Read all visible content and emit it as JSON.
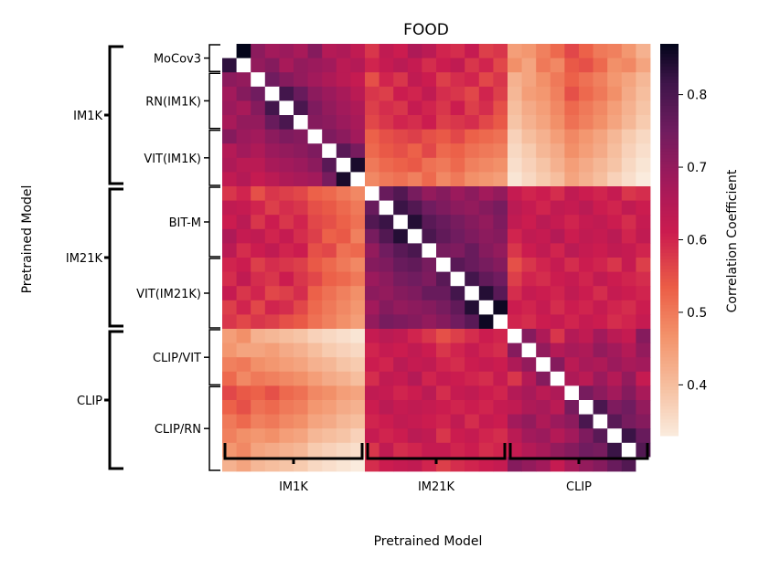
{
  "chart_data": {
    "type": "heatmap",
    "title": "FOOD",
    "xlabel": "Pretrained Model",
    "ylabel": "Pretrained Model",
    "colorbar": {
      "label": "Correlation Coefficient",
      "ticks": [
        0.4,
        0.5,
        0.6,
        0.7,
        0.8
      ],
      "tick_labels": [
        "0.4",
        "0.5",
        "0.6",
        "0.7",
        "0.8"
      ],
      "vmin": 0.33,
      "vmax": 0.87,
      "colormap": "rocket"
    },
    "groups": [
      {
        "name": "IM1K",
        "start": 0,
        "end": 10,
        "subgroups": [
          {
            "name": "MoCov3",
            "start": 0,
            "end": 2
          },
          {
            "name": "RN(IM1K)",
            "start": 2,
            "end": 6
          },
          {
            "name": "VIT(IM1K)",
            "start": 6,
            "end": 10
          }
        ]
      },
      {
        "name": "IM21K",
        "start": 10,
        "end": 20,
        "subgroups": [
          {
            "name": "BIT-M",
            "start": 10,
            "end": 15
          },
          {
            "name": "VIT(IM21K)",
            "start": 15,
            "end": 20
          }
        ]
      },
      {
        "name": "CLIP",
        "start": 20,
        "end": 30,
        "subgroups": [
          {
            "name": "CLIP/VIT",
            "start": 20,
            "end": 24
          },
          {
            "name": "CLIP/RN",
            "start": 24,
            "end": 30
          }
        ]
      }
    ],
    "x_groups": [
      "IM1K",
      "IM21K",
      "CLIP"
    ],
    "n": 30,
    "diagonal": "masked (white)",
    "values": [
      [
        null,
        0.87,
        0.71,
        0.68,
        0.69,
        0.67,
        0.72,
        0.65,
        0.66,
        0.63,
        0.58,
        0.63,
        0.61,
        0.66,
        0.64,
        0.6,
        0.59,
        0.62,
        0.57,
        0.58,
        0.45,
        0.46,
        0.49,
        0.52,
        0.56,
        0.53,
        0.5,
        0.49,
        0.46,
        0.42
      ],
      [
        0.83,
        null,
        0.7,
        0.72,
        0.67,
        0.7,
        0.69,
        0.68,
        0.64,
        0.65,
        0.6,
        0.62,
        0.64,
        0.62,
        0.59,
        0.61,
        0.63,
        0.58,
        0.6,
        0.56,
        0.47,
        0.44,
        0.5,
        0.48,
        0.54,
        0.55,
        0.52,
        0.47,
        0.48,
        0.44
      ],
      [
        0.71,
        0.7,
        null,
        0.75,
        0.72,
        0.7,
        0.68,
        0.66,
        0.64,
        0.62,
        0.55,
        0.6,
        0.58,
        0.63,
        0.61,
        0.57,
        0.59,
        0.6,
        0.56,
        0.58,
        0.42,
        0.44,
        0.47,
        0.5,
        0.53,
        0.51,
        0.49,
        0.46,
        0.44,
        0.41
      ],
      [
        0.68,
        0.72,
        0.75,
        null,
        0.81,
        0.76,
        0.71,
        0.69,
        0.67,
        0.64,
        0.58,
        0.57,
        0.61,
        0.6,
        0.63,
        0.59,
        0.58,
        0.56,
        0.6,
        0.57,
        0.41,
        0.45,
        0.46,
        0.49,
        0.55,
        0.52,
        0.5,
        0.47,
        0.43,
        0.4
      ],
      [
        0.69,
        0.67,
        0.72,
        0.81,
        null,
        0.8,
        0.73,
        0.7,
        0.68,
        0.66,
        0.57,
        0.59,
        0.58,
        0.62,
        0.6,
        0.58,
        0.61,
        0.57,
        0.59,
        0.55,
        0.4,
        0.43,
        0.45,
        0.48,
        0.52,
        0.5,
        0.48,
        0.45,
        0.42,
        0.39
      ],
      [
        0.67,
        0.7,
        0.7,
        0.76,
        0.8,
        null,
        0.72,
        0.71,
        0.69,
        0.67,
        0.56,
        0.58,
        0.6,
        0.59,
        0.61,
        0.57,
        0.58,
        0.59,
        0.56,
        0.54,
        0.39,
        0.42,
        0.44,
        0.47,
        0.51,
        0.49,
        0.47,
        0.44,
        0.41,
        0.38
      ],
      [
        0.72,
        0.69,
        0.68,
        0.71,
        0.73,
        0.72,
        null,
        0.73,
        0.71,
        0.68,
        0.53,
        0.55,
        0.56,
        0.57,
        0.55,
        0.54,
        0.56,
        0.53,
        0.52,
        0.51,
        0.37,
        0.4,
        0.42,
        0.45,
        0.48,
        0.46,
        0.44,
        0.41,
        0.38,
        0.36
      ],
      [
        0.65,
        0.68,
        0.66,
        0.69,
        0.7,
        0.71,
        0.73,
        null,
        0.78,
        0.74,
        0.52,
        0.54,
        0.55,
        0.53,
        0.56,
        0.52,
        0.53,
        0.51,
        0.5,
        0.49,
        0.36,
        0.38,
        0.41,
        0.43,
        0.47,
        0.45,
        0.43,
        0.4,
        0.37,
        0.35
      ],
      [
        0.66,
        0.64,
        0.64,
        0.67,
        0.68,
        0.69,
        0.71,
        0.78,
        null,
        0.85,
        0.5,
        0.52,
        0.53,
        0.54,
        0.51,
        0.5,
        0.52,
        0.49,
        0.48,
        0.47,
        0.35,
        0.37,
        0.39,
        0.42,
        0.45,
        0.43,
        0.41,
        0.39,
        0.36,
        0.34
      ],
      [
        0.63,
        0.65,
        0.62,
        0.64,
        0.66,
        0.67,
        0.68,
        0.74,
        0.85,
        null,
        0.48,
        0.5,
        0.51,
        0.49,
        0.52,
        0.48,
        0.5,
        0.47,
        0.46,
        0.45,
        0.34,
        0.36,
        0.38,
        0.4,
        0.44,
        0.42,
        0.4,
        0.37,
        0.35,
        0.33
      ],
      [
        0.58,
        0.6,
        0.55,
        0.58,
        0.57,
        0.56,
        0.53,
        0.52,
        0.5,
        0.48,
        null,
        0.76,
        0.79,
        0.74,
        0.7,
        0.72,
        0.69,
        0.71,
        0.68,
        0.7,
        0.62,
        0.6,
        0.61,
        0.59,
        0.63,
        0.61,
        0.6,
        0.62,
        0.58,
        0.59
      ],
      [
        0.63,
        0.62,
        0.6,
        0.57,
        0.59,
        0.58,
        0.55,
        0.54,
        0.52,
        0.5,
        0.76,
        null,
        0.82,
        0.79,
        0.75,
        0.73,
        0.71,
        0.7,
        0.72,
        0.74,
        0.64,
        0.62,
        0.6,
        0.63,
        0.62,
        0.64,
        0.61,
        0.6,
        0.63,
        0.61
      ],
      [
        0.61,
        0.64,
        0.58,
        0.61,
        0.58,
        0.6,
        0.56,
        0.55,
        0.53,
        0.51,
        0.79,
        0.82,
        null,
        0.84,
        0.78,
        0.76,
        0.74,
        0.72,
        0.7,
        0.73,
        0.63,
        0.61,
        0.64,
        0.62,
        0.6,
        0.62,
        0.63,
        0.61,
        0.59,
        0.62
      ],
      [
        0.66,
        0.62,
        0.63,
        0.6,
        0.62,
        0.59,
        0.57,
        0.53,
        0.54,
        0.49,
        0.74,
        0.79,
        0.84,
        null,
        0.8,
        0.77,
        0.75,
        0.73,
        0.71,
        0.72,
        0.6,
        0.63,
        0.62,
        0.65,
        0.61,
        0.63,
        0.62,
        0.64,
        0.6,
        0.63
      ],
      [
        0.64,
        0.59,
        0.61,
        0.63,
        0.6,
        0.61,
        0.55,
        0.56,
        0.51,
        0.52,
        0.7,
        0.75,
        0.78,
        0.8,
        null,
        0.74,
        0.73,
        0.76,
        0.72,
        0.7,
        0.58,
        0.61,
        0.63,
        0.6,
        0.64,
        0.62,
        0.61,
        0.63,
        0.62,
        0.6
      ],
      [
        0.6,
        0.61,
        0.57,
        0.59,
        0.58,
        0.57,
        0.54,
        0.52,
        0.5,
        0.48,
        0.72,
        0.73,
        0.76,
        0.77,
        0.74,
        null,
        0.78,
        0.76,
        0.74,
        0.72,
        0.55,
        0.58,
        0.6,
        0.62,
        0.59,
        0.61,
        0.6,
        0.58,
        0.62,
        0.57
      ],
      [
        0.59,
        0.63,
        0.59,
        0.58,
        0.61,
        0.58,
        0.56,
        0.53,
        0.52,
        0.5,
        0.69,
        0.71,
        0.74,
        0.75,
        0.73,
        0.78,
        null,
        0.81,
        0.77,
        0.75,
        0.57,
        0.6,
        0.59,
        0.61,
        0.62,
        0.6,
        0.63,
        0.61,
        0.6,
        0.59
      ],
      [
        0.62,
        0.58,
        0.6,
        0.56,
        0.57,
        0.59,
        0.53,
        0.51,
        0.49,
        0.47,
        0.71,
        0.7,
        0.72,
        0.73,
        0.76,
        0.76,
        0.81,
        null,
        0.84,
        0.78,
        0.59,
        0.62,
        0.61,
        0.6,
        0.63,
        0.61,
        0.59,
        0.62,
        0.61,
        0.6
      ],
      [
        0.57,
        0.6,
        0.56,
        0.6,
        0.59,
        0.56,
        0.52,
        0.5,
        0.48,
        0.46,
        0.68,
        0.72,
        0.7,
        0.71,
        0.72,
        0.74,
        0.77,
        0.84,
        null,
        0.86,
        0.61,
        0.6,
        0.62,
        0.59,
        0.61,
        0.6,
        0.62,
        0.6,
        0.59,
        0.61
      ],
      [
        0.58,
        0.56,
        0.58,
        0.57,
        0.55,
        0.54,
        0.51,
        0.49,
        0.47,
        0.45,
        0.7,
        0.74,
        0.73,
        0.72,
        0.7,
        0.72,
        0.75,
        0.78,
        0.86,
        null,
        0.6,
        0.59,
        0.61,
        0.62,
        0.6,
        0.62,
        0.61,
        0.59,
        0.6,
        0.62
      ],
      [
        0.45,
        0.47,
        0.42,
        0.41,
        0.4,
        0.39,
        0.37,
        0.36,
        0.35,
        0.34,
        0.62,
        0.64,
        0.63,
        0.6,
        0.58,
        0.55,
        0.57,
        0.59,
        0.61,
        0.6,
        null,
        0.72,
        0.66,
        0.58,
        0.65,
        0.63,
        0.68,
        0.64,
        0.62,
        0.72
      ],
      [
        0.46,
        0.44,
        0.44,
        0.45,
        0.43,
        0.42,
        0.4,
        0.38,
        0.37,
        0.36,
        0.6,
        0.62,
        0.61,
        0.63,
        0.61,
        0.58,
        0.6,
        0.62,
        0.6,
        0.59,
        0.72,
        null,
        0.7,
        0.65,
        0.67,
        0.66,
        0.7,
        0.68,
        0.65,
        0.7
      ],
      [
        0.49,
        0.5,
        0.47,
        0.46,
        0.45,
        0.44,
        0.42,
        0.41,
        0.39,
        0.38,
        0.61,
        0.6,
        0.64,
        0.62,
        0.63,
        0.6,
        0.59,
        0.61,
        0.62,
        0.61,
        0.66,
        0.7,
        null,
        0.72,
        0.64,
        0.67,
        0.66,
        0.69,
        0.67,
        0.68
      ],
      [
        0.52,
        0.48,
        0.5,
        0.49,
        0.48,
        0.47,
        0.45,
        0.43,
        0.42,
        0.4,
        0.59,
        0.63,
        0.62,
        0.65,
        0.6,
        0.62,
        0.61,
        0.6,
        0.59,
        0.62,
        0.58,
        0.65,
        0.72,
        null,
        0.66,
        0.64,
        0.69,
        0.65,
        0.7,
        0.62
      ],
      [
        0.56,
        0.54,
        0.53,
        0.55,
        0.52,
        0.51,
        0.48,
        0.47,
        0.45,
        0.44,
        0.63,
        0.62,
        0.6,
        0.61,
        0.64,
        0.59,
        0.62,
        0.63,
        0.61,
        0.6,
        0.65,
        0.67,
        0.64,
        0.66,
        null,
        0.74,
        0.71,
        0.68,
        0.72,
        0.67
      ],
      [
        0.53,
        0.55,
        0.51,
        0.52,
        0.5,
        0.49,
        0.46,
        0.45,
        0.43,
        0.42,
        0.61,
        0.64,
        0.62,
        0.63,
        0.62,
        0.61,
        0.6,
        0.61,
        0.6,
        0.62,
        0.63,
        0.66,
        0.67,
        0.64,
        0.74,
        null,
        0.8,
        0.73,
        0.75,
        0.7
      ],
      [
        0.5,
        0.52,
        0.49,
        0.5,
        0.48,
        0.47,
        0.44,
        0.43,
        0.41,
        0.4,
        0.6,
        0.61,
        0.63,
        0.62,
        0.61,
        0.6,
        0.63,
        0.59,
        0.62,
        0.61,
        0.68,
        0.7,
        0.66,
        0.69,
        0.71,
        0.8,
        null,
        0.78,
        0.74,
        0.72
      ],
      [
        0.49,
        0.47,
        0.46,
        0.47,
        0.45,
        0.44,
        0.41,
        0.4,
        0.39,
        0.37,
        0.62,
        0.6,
        0.61,
        0.64,
        0.63,
        0.58,
        0.61,
        0.62,
        0.6,
        0.59,
        0.64,
        0.68,
        0.69,
        0.65,
        0.68,
        0.73,
        0.78,
        null,
        0.82,
        0.76
      ],
      [
        0.46,
        0.48,
        0.44,
        0.43,
        0.42,
        0.41,
        0.38,
        0.37,
        0.36,
        0.35,
        0.58,
        0.63,
        0.59,
        0.6,
        0.62,
        0.62,
        0.6,
        0.61,
        0.59,
        0.6,
        0.62,
        0.65,
        0.67,
        0.7,
        0.72,
        0.75,
        0.74,
        0.82,
        null,
        0.79
      ],
      [
        0.42,
        0.44,
        0.41,
        0.4,
        0.39,
        0.38,
        0.36,
        0.35,
        0.34,
        0.33,
        0.59,
        0.61,
        0.62,
        0.63,
        0.6,
        0.57,
        0.59,
        0.6,
        0.61,
        0.62,
        0.72,
        0.7,
        0.68,
        0.62,
        0.67,
        0.7,
        0.72,
        0.76,
        0.79,
        null
      ]
    ]
  }
}
